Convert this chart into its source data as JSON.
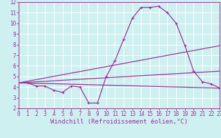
{
  "background_color": "#cef0f0",
  "grid_color": "#ffffff",
  "line_color": "#993399",
  "xlabel": "Windchill (Refroidissement éolien,°C)",
  "xlim": [
    0,
    23
  ],
  "ylim": [
    2,
    12
  ],
  "xticks": [
    0,
    1,
    2,
    3,
    4,
    5,
    6,
    7,
    8,
    9,
    10,
    11,
    12,
    13,
    14,
    15,
    16,
    17,
    18,
    19,
    20,
    21,
    22,
    23
  ],
  "yticks": [
    2,
    3,
    4,
    5,
    6,
    7,
    8,
    9,
    10,
    11,
    12
  ],
  "line1_x": [
    0,
    1,
    2,
    3,
    4,
    5,
    6,
    7,
    8,
    9,
    10,
    11,
    12,
    13,
    14,
    15,
    16,
    17,
    18,
    19,
    20,
    21,
    22,
    23
  ],
  "line1_y": [
    4.4,
    4.4,
    4.1,
    4.1,
    3.7,
    3.5,
    4.1,
    4.0,
    2.5,
    2.5,
    5.0,
    6.5,
    8.5,
    10.5,
    11.5,
    11.5,
    11.6,
    11.0,
    10.0,
    7.9,
    5.5,
    4.5,
    4.3,
    3.9
  ],
  "line2_x": [
    0,
    23
  ],
  "line2_y": [
    4.4,
    3.9
  ],
  "line3_x": [
    0,
    23
  ],
  "line3_y": [
    4.4,
    7.9
  ],
  "line4_x": [
    0,
    23
  ],
  "line4_y": [
    4.4,
    5.5
  ],
  "tick_font_size": 5.5,
  "xlabel_font_size": 6.5
}
